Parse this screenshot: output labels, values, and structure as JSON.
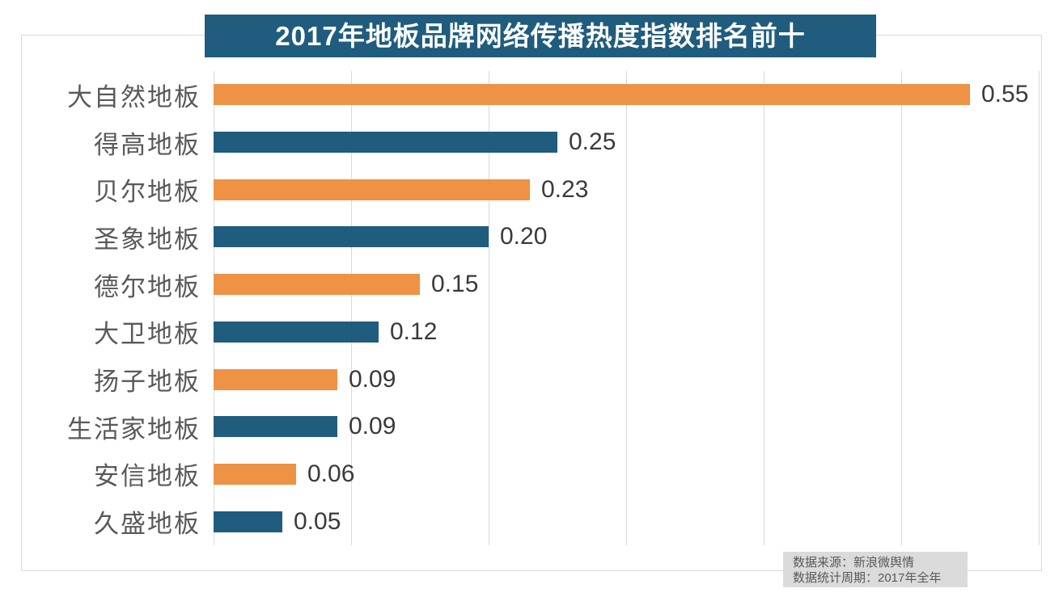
{
  "chart_data": {
    "type": "bar",
    "orientation": "horizontal",
    "title": "2017年地板品牌网络传播热度指数排名前十",
    "categories": [
      "大自然地板",
      "得高地板",
      "贝尔地板",
      "圣象地板",
      "德尔地板",
      "大卫地板",
      "扬子地板",
      "生活家地板",
      "安信地板",
      "久盛地板"
    ],
    "values": [
      0.55,
      0.25,
      0.23,
      0.2,
      0.15,
      0.12,
      0.09,
      0.09,
      0.06,
      0.05
    ],
    "value_labels": [
      "0.55",
      "0.25",
      "0.23",
      "0.20",
      "0.15",
      "0.12",
      "0.09",
      "0.09",
      "0.06",
      "0.05"
    ],
    "xlabel": "",
    "ylabel": "",
    "xlim": [
      0,
      0.6
    ],
    "gridline_values": [
      0,
      0.1,
      0.2,
      0.3,
      0.4,
      0.5,
      0.6
    ],
    "grid": "vertical-only",
    "legend": "none",
    "bar_color_pattern": [
      "orange",
      "teal"
    ],
    "colors": {
      "orange": "#ee9245",
      "teal": "#1f5c7e",
      "title_banner_bg": "#1f5c7e",
      "title_text": "#ffffff",
      "category_label": "#595959",
      "value_label": "#3a3a3a",
      "gridline": "#d9d9d9",
      "frame_border": "#d9d9d9",
      "source_note_bg": "#dbdbdb",
      "source_note_text": "#595959"
    }
  },
  "source_note": {
    "line1": "数据来源：新浪微舆情",
    "line2": "数据统计周期：2017年全年"
  }
}
